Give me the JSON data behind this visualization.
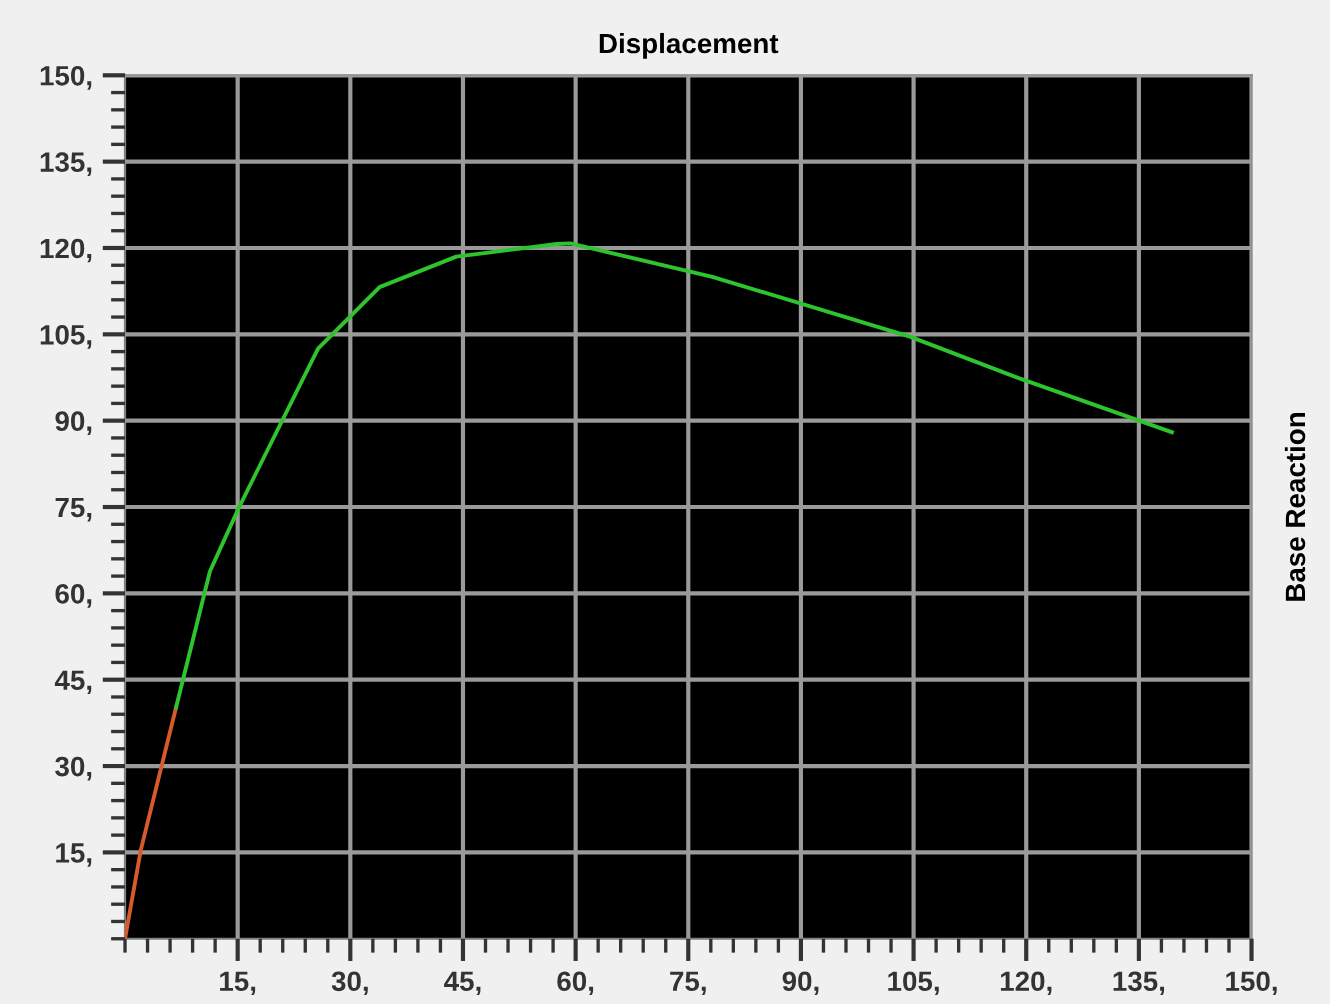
{
  "chart_data": {
    "type": "line",
    "title": "Displacement",
    "y2label": "Base Reaction",
    "series": [
      {
        "color": "#d65a2a",
        "x": [
          0,
          2.1,
          6.8
        ],
        "values": [
          0,
          15.4,
          40.2
        ]
      },
      {
        "color": "#2ec42e",
        "x": [
          6.8,
          11.3,
          15.2,
          25.7,
          33.9,
          44.1,
          57.5,
          59.3,
          78.2,
          104.5,
          119,
          139.4
        ],
        "values": [
          40.2,
          63.8,
          75,
          102.5,
          113.2,
          118.5,
          120.7,
          120.8,
          115,
          104.6,
          97.4,
          88
        ]
      }
    ],
    "xlim": [
      0,
      150
    ],
    "ylim": [
      0,
      150
    ],
    "xticks": [
      {
        "value": 15,
        "label": "15,"
      },
      {
        "value": 30,
        "label": "30,"
      },
      {
        "value": 45,
        "label": "45,"
      },
      {
        "value": 60,
        "label": "60,"
      },
      {
        "value": 75,
        "label": "75,"
      },
      {
        "value": 90,
        "label": "90,"
      },
      {
        "value": 105,
        "label": "105,"
      },
      {
        "value": 120,
        "label": "120,"
      },
      {
        "value": 135,
        "label": "135,"
      },
      {
        "value": 150,
        "label": "150,"
      }
    ],
    "yticks": [
      {
        "value": 15,
        "label": "15,"
      },
      {
        "value": 30,
        "label": "30,"
      },
      {
        "value": 45,
        "label": "45,"
      },
      {
        "value": 60,
        "label": "60,"
      },
      {
        "value": 75,
        "label": "75,"
      },
      {
        "value": 90,
        "label": "90,"
      },
      {
        "value": 105,
        "label": "105,"
      },
      {
        "value": 120,
        "label": "120,"
      },
      {
        "value": 135,
        "label": "135,"
      },
      {
        "value": 150,
        "label": "150,"
      }
    ],
    "grid": true,
    "marker": "none",
    "line_style": "solid",
    "legend": false
  }
}
